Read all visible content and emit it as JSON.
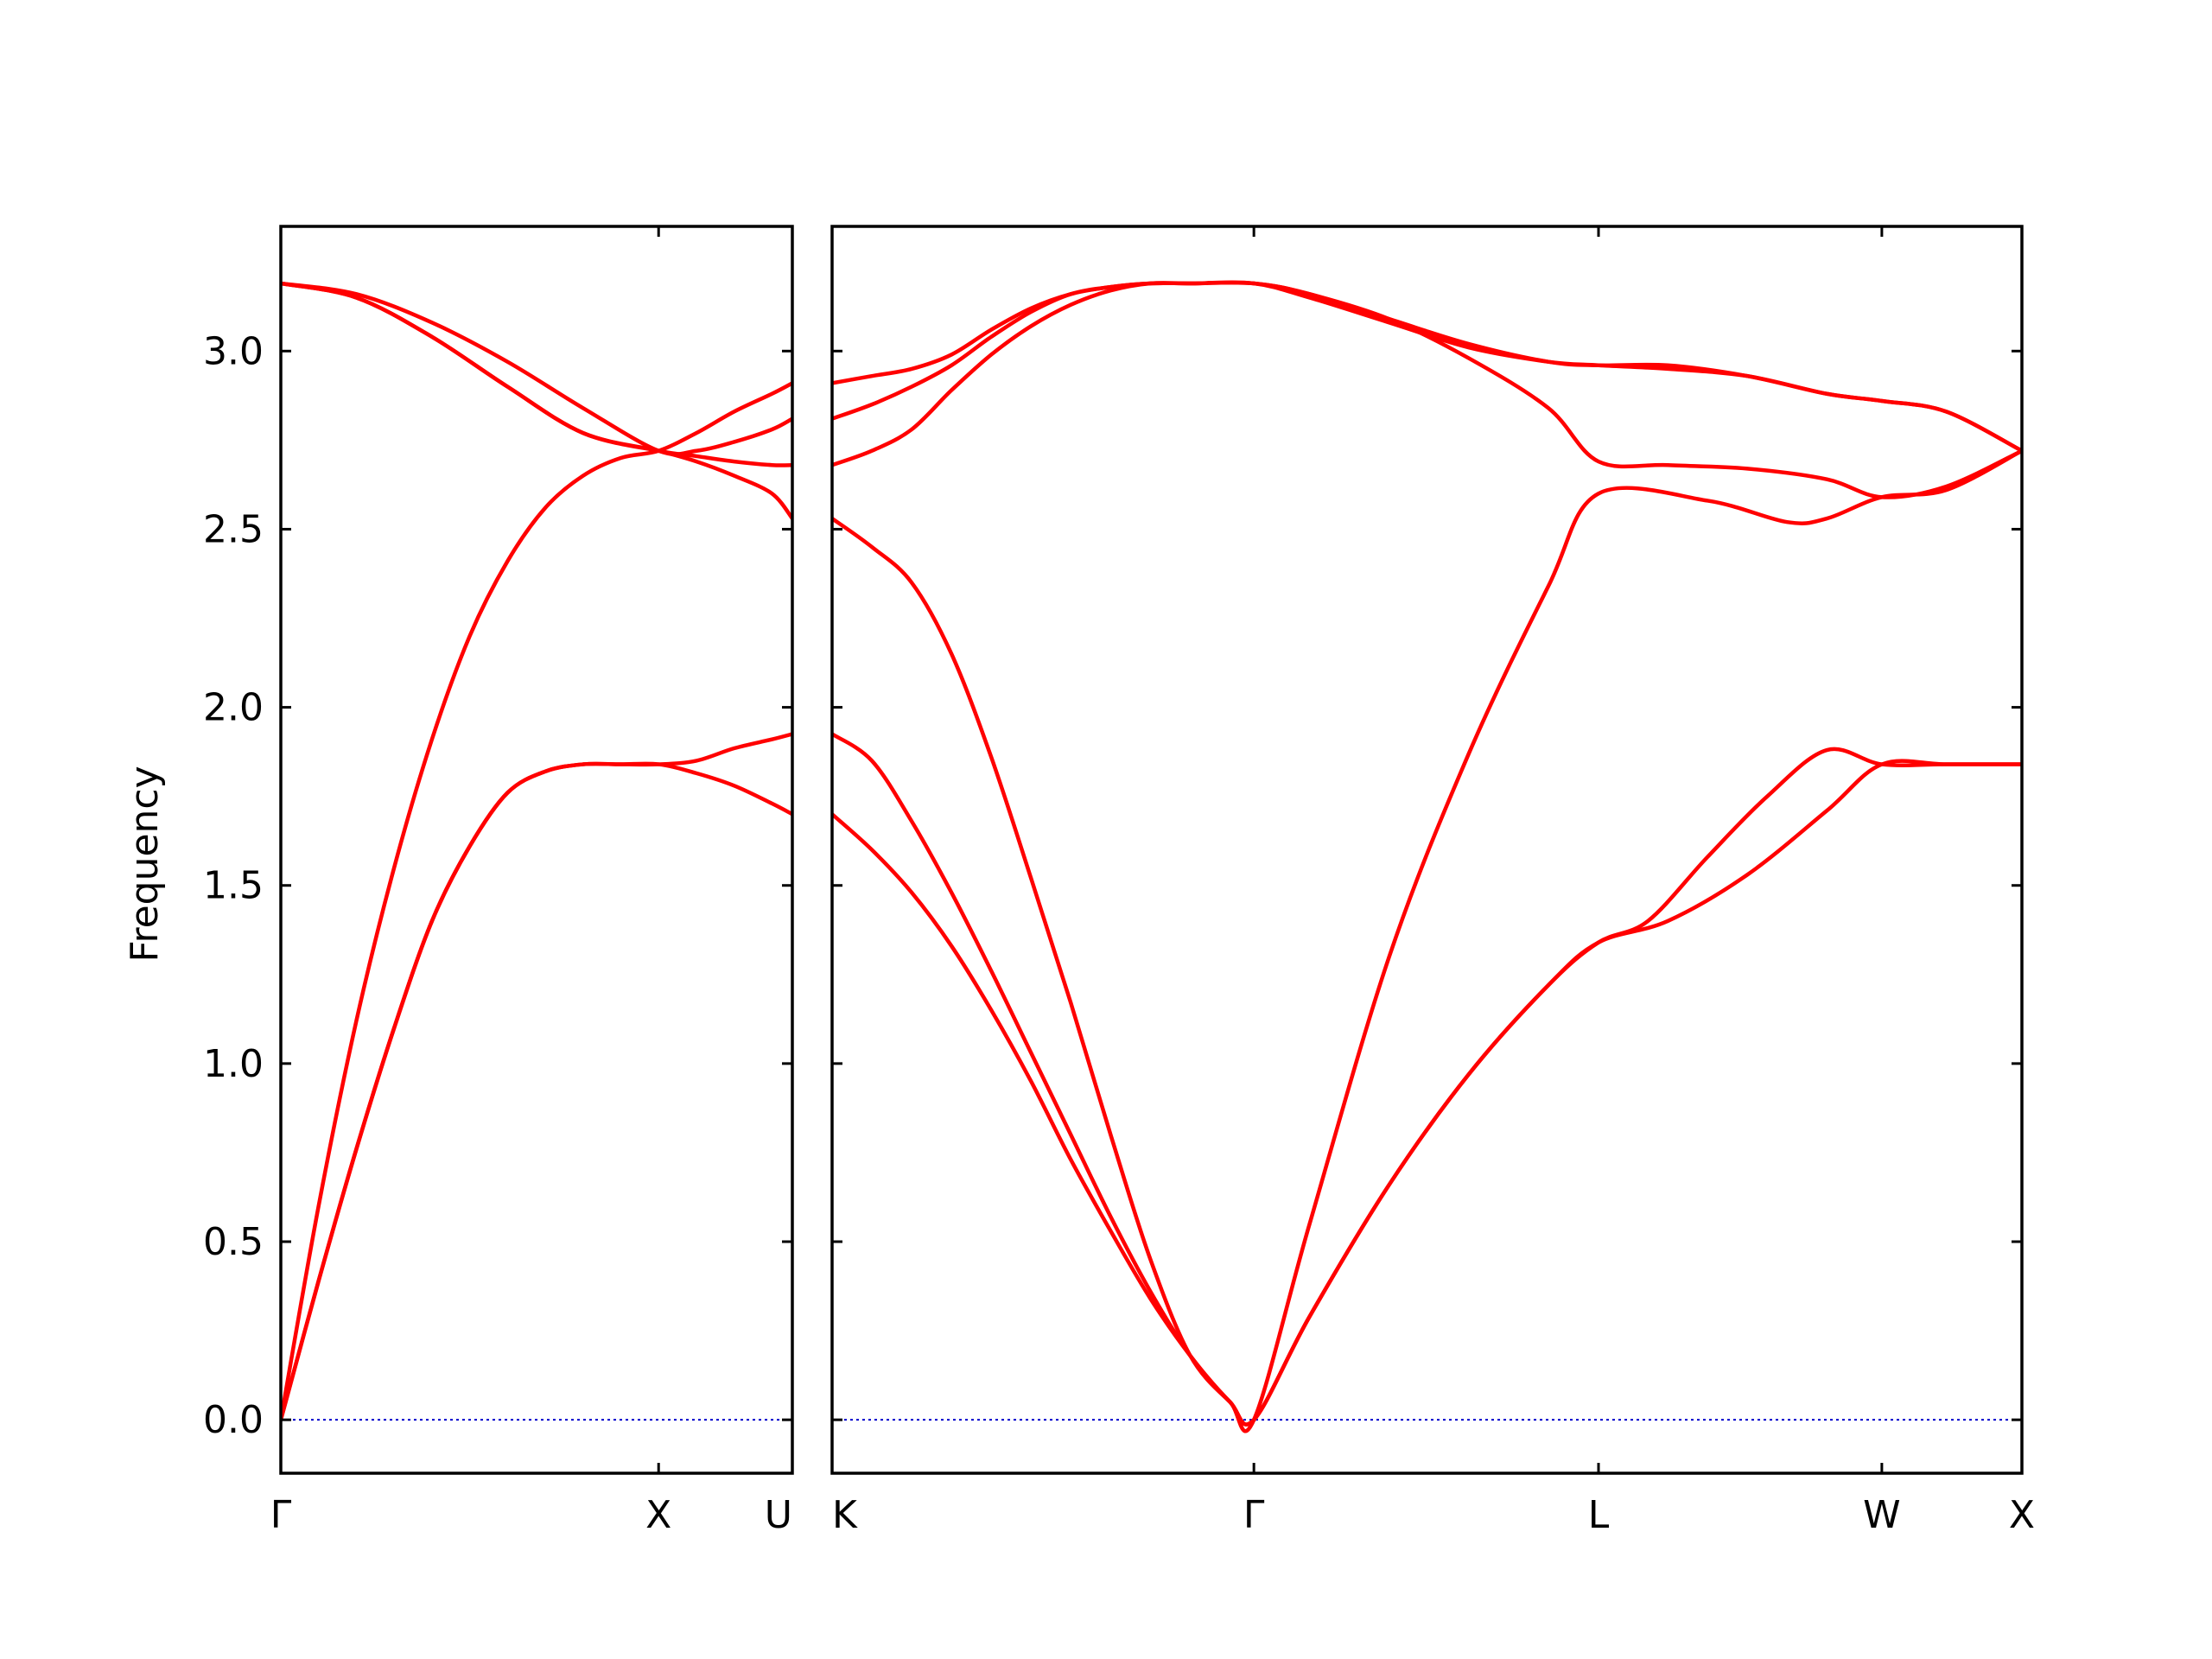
{
  "colors": {
    "band": "#ff0000",
    "zero_line": "#0000cc",
    "axis": "#000000"
  },
  "chart_data": {
    "type": "line",
    "title": "",
    "ylabel": "Frequency",
    "xlabel": "",
    "ylim": [
      -0.15,
      3.35
    ],
    "yticks": [
      "0.0",
      "0.5",
      "1.0",
      "1.5",
      "2.0",
      "2.5",
      "3.0"
    ],
    "grid": false,
    "legend": "none",
    "panels": [
      {
        "id": "gamma-x-u",
        "ticks": [
          {
            "label": "Γ",
            "x": 0
          },
          {
            "label": "X",
            "x": 1
          },
          {
            "label": "U",
            "x": 1.354
          }
        ],
        "xlim": [
          0,
          1.354
        ],
        "zero_line": true,
        "series": [
          {
            "values": [
              [
                0,
                0
              ],
              [
                0.1,
                0.39
              ],
              [
                0.2,
                0.76
              ],
              [
                0.3,
                1.1
              ],
              [
                0.4,
                1.4
              ],
              [
                0.5,
                1.61
              ],
              [
                0.6,
                1.76
              ],
              [
                0.7,
                1.82
              ],
              [
                0.8,
                1.84
              ],
              [
                0.9,
                1.84
              ],
              [
                1.0,
                1.84
              ],
              [
                1.1,
                1.815
              ],
              [
                1.2,
                1.78
              ],
              [
                1.3,
                1.73
              ],
              [
                1.354,
                1.7
              ]
            ]
          },
          {
            "values": [
              [
                0,
                0
              ],
              [
                0.1,
                0.39
              ],
              [
                0.2,
                0.76
              ],
              [
                0.3,
                1.1
              ],
              [
                0.4,
                1.4
              ],
              [
                0.5,
                1.61
              ],
              [
                0.6,
                1.76
              ],
              [
                0.7,
                1.82
              ],
              [
                0.8,
                1.84
              ],
              [
                0.9,
                1.84
              ],
              [
                1.0,
                1.84
              ],
              [
                1.1,
                1.85
              ],
              [
                1.2,
                1.885
              ],
              [
                1.3,
                1.91
              ],
              [
                1.354,
                1.925
              ]
            ]
          },
          {
            "values": [
              [
                0,
                0
              ],
              [
                0.1,
                0.6
              ],
              [
                0.2,
                1.12
              ],
              [
                0.3,
                1.55
              ],
              [
                0.4,
                1.91
              ],
              [
                0.5,
                2.2
              ],
              [
                0.6,
                2.41
              ],
              [
                0.7,
                2.56
              ],
              [
                0.8,
                2.65
              ],
              [
                0.9,
                2.7
              ],
              [
                1.0,
                2.72
              ],
              [
                1.1,
                2.77
              ],
              [
                1.2,
                2.83
              ],
              [
                1.3,
                2.88
              ],
              [
                1.354,
                2.91
              ]
            ]
          },
          {
            "values": [
              [
                0,
                3.19
              ],
              [
                0.2,
                3.16
              ],
              [
                0.4,
                3.08
              ],
              [
                0.6,
                2.97
              ],
              [
                0.8,
                2.84
              ],
              [
                1.0,
                2.72
              ],
              [
                1.1,
                2.72
              ],
              [
                1.2,
                2.745
              ],
              [
                1.3,
                2.78
              ],
              [
                1.354,
                2.81
              ]
            ]
          },
          {
            "values": [
              [
                0,
                3.19
              ],
              [
                0.2,
                3.15
              ],
              [
                0.4,
                3.04
              ],
              [
                0.6,
                2.9
              ],
              [
                0.8,
                2.77
              ],
              [
                1.0,
                2.72
              ],
              [
                1.1,
                2.69
              ],
              [
                1.2,
                2.65
              ],
              [
                1.3,
                2.6
              ],
              [
                1.354,
                2.53
              ]
            ]
          },
          {
            "values": [
              [
                0,
                3.19
              ],
              [
                0.2,
                3.15
              ],
              [
                0.4,
                3.04
              ],
              [
                0.6,
                2.9
              ],
              [
                0.8,
                2.77
              ],
              [
                1.0,
                2.72
              ],
              [
                1.1,
                2.705
              ],
              [
                1.2,
                2.69
              ],
              [
                1.3,
                2.68
              ],
              [
                1.354,
                2.68
              ]
            ]
          }
        ]
      },
      {
        "id": "k-gamma-l-w-x",
        "ticks": [
          {
            "label": "K",
            "x": 0
          },
          {
            "label": "Γ",
            "x": 1.06
          },
          {
            "label": "L",
            "x": 1.926
          },
          {
            "label": "W",
            "x": 2.638
          },
          {
            "label": "X",
            "x": 2.99
          }
        ],
        "xlim": [
          0,
          2.99
        ],
        "zero_line": true,
        "series": [
          {
            "values": [
              [
                0,
                1.7
              ],
              [
                0.1,
                1.6
              ],
              [
                0.2,
                1.48
              ],
              [
                0.3,
                1.33
              ],
              [
                0.4,
                1.15
              ],
              [
                0.5,
                0.95
              ],
              [
                0.6,
                0.73
              ],
              [
                0.7,
                0.53
              ],
              [
                0.8,
                0.34
              ],
              [
                0.9,
                0.18
              ],
              [
                1.0,
                0.05
              ],
              [
                1.06,
                0
              ],
              [
                1.2,
                0.29
              ],
              [
                1.4,
                0.66
              ],
              [
                1.6,
                0.97
              ],
              [
                1.8,
                1.22
              ],
              [
                1.926,
                1.34
              ],
              [
                2.1,
                1.4
              ],
              [
                2.3,
                1.53
              ],
              [
                2.5,
                1.71
              ],
              [
                2.638,
                1.84
              ],
              [
                2.8,
                1.84
              ],
              [
                2.99,
                1.84
              ]
            ]
          },
          {
            "values": [
              [
                0,
                1.925
              ],
              [
                0.1,
                1.85
              ],
              [
                0.2,
                1.68
              ],
              [
                0.3,
                1.48
              ],
              [
                0.4,
                1.26
              ],
              [
                0.5,
                1.03
              ],
              [
                0.6,
                0.8
              ],
              [
                0.7,
                0.57
              ],
              [
                0.8,
                0.36
              ],
              [
                0.9,
                0.18
              ],
              [
                1.0,
                0.05
              ],
              [
                1.06,
                0
              ],
              [
                1.2,
                0.29
              ],
              [
                1.4,
                0.66
              ],
              [
                1.6,
                0.97
              ],
              [
                1.8,
                1.22
              ],
              [
                1.926,
                1.34
              ],
              [
                2.05,
                1.4
              ],
              [
                2.2,
                1.58
              ],
              [
                2.35,
                1.75
              ],
              [
                2.5,
                1.88
              ],
              [
                2.638,
                1.84
              ],
              [
                2.8,
                1.84
              ],
              [
                2.99,
                1.84
              ]
            ]
          },
          {
            "values": [
              [
                0,
                2.53
              ],
              [
                0.1,
                2.45
              ],
              [
                0.2,
                2.35
              ],
              [
                0.3,
                2.15
              ],
              [
                0.4,
                1.86
              ],
              [
                0.5,
                1.52
              ],
              [
                0.6,
                1.17
              ],
              [
                0.7,
                0.8
              ],
              [
                0.8,
                0.45
              ],
              [
                0.9,
                0.18
              ],
              [
                1.0,
                0.05
              ],
              [
                1.06,
                0
              ],
              [
                1.2,
                0.55
              ],
              [
                1.4,
                1.3
              ],
              [
                1.6,
                1.87
              ],
              [
                1.8,
                2.34
              ],
              [
                1.926,
                2.6
              ],
              [
                2.2,
                2.58
              ],
              [
                2.4,
                2.52
              ],
              [
                2.5,
                2.53
              ],
              [
                2.638,
                2.59
              ],
              [
                2.8,
                2.61
              ],
              [
                2.99,
                2.72
              ]
            ]
          },
          {
            "values": [
              [
                0,
                2.68
              ],
              [
                0.1,
                2.72
              ],
              [
                0.2,
                2.78
              ],
              [
                0.3,
                2.89
              ],
              [
                0.4,
                2.99
              ],
              [
                0.5,
                3.07
              ],
              [
                0.6,
                3.13
              ],
              [
                0.7,
                3.17
              ],
              [
                0.8,
                3.19
              ],
              [
                0.9,
                3.19
              ],
              [
                1.06,
                3.19
              ],
              [
                1.2,
                3.16
              ],
              [
                1.4,
                3.09
              ],
              [
                1.6,
                2.98
              ],
              [
                1.8,
                2.84
              ],
              [
                1.926,
                2.69
              ],
              [
                2.1,
                2.68
              ],
              [
                2.3,
                2.67
              ],
              [
                2.5,
                2.64
              ],
              [
                2.638,
                2.59
              ],
              [
                2.8,
                2.62
              ],
              [
                2.99,
                2.72
              ]
            ]
          },
          {
            "values": [
              [
                0,
                2.81
              ],
              [
                0.1,
                2.85
              ],
              [
                0.2,
                2.9
              ],
              [
                0.3,
                2.96
              ],
              [
                0.4,
                3.04
              ],
              [
                0.5,
                3.11
              ],
              [
                0.6,
                3.16
              ],
              [
                0.7,
                3.18
              ],
              [
                0.8,
                3.19
              ],
              [
                0.9,
                3.19
              ],
              [
                1.06,
                3.19
              ],
              [
                1.2,
                3.15
              ],
              [
                1.4,
                3.08
              ],
              [
                1.6,
                3.01
              ],
              [
                1.8,
                2.97
              ],
              [
                1.926,
                2.96
              ],
              [
                2.1,
                2.95
              ],
              [
                2.3,
                2.93
              ],
              [
                2.5,
                2.88
              ],
              [
                2.638,
                2.86
              ],
              [
                2.8,
                2.83
              ],
              [
                2.99,
                2.72
              ]
            ]
          },
          {
            "values": [
              [
                0,
                2.91
              ],
              [
                0.1,
                2.93
              ],
              [
                0.2,
                2.95
              ],
              [
                0.3,
                2.99
              ],
              [
                0.4,
                3.06
              ],
              [
                0.5,
                3.12
              ],
              [
                0.6,
                3.16
              ],
              [
                0.7,
                3.18
              ],
              [
                0.8,
                3.19
              ],
              [
                0.9,
                3.19
              ],
              [
                1.06,
                3.19
              ],
              [
                1.2,
                3.16
              ],
              [
                1.4,
                3.09
              ],
              [
                1.6,
                3.02
              ],
              [
                1.8,
                2.97
              ],
              [
                1.926,
                2.96
              ],
              [
                2.1,
                2.96
              ],
              [
                2.3,
                2.93
              ],
              [
                2.5,
                2.88
              ],
              [
                2.638,
                2.86
              ],
              [
                2.8,
                2.83
              ],
              [
                2.99,
                2.72
              ]
            ]
          }
        ]
      }
    ]
  }
}
